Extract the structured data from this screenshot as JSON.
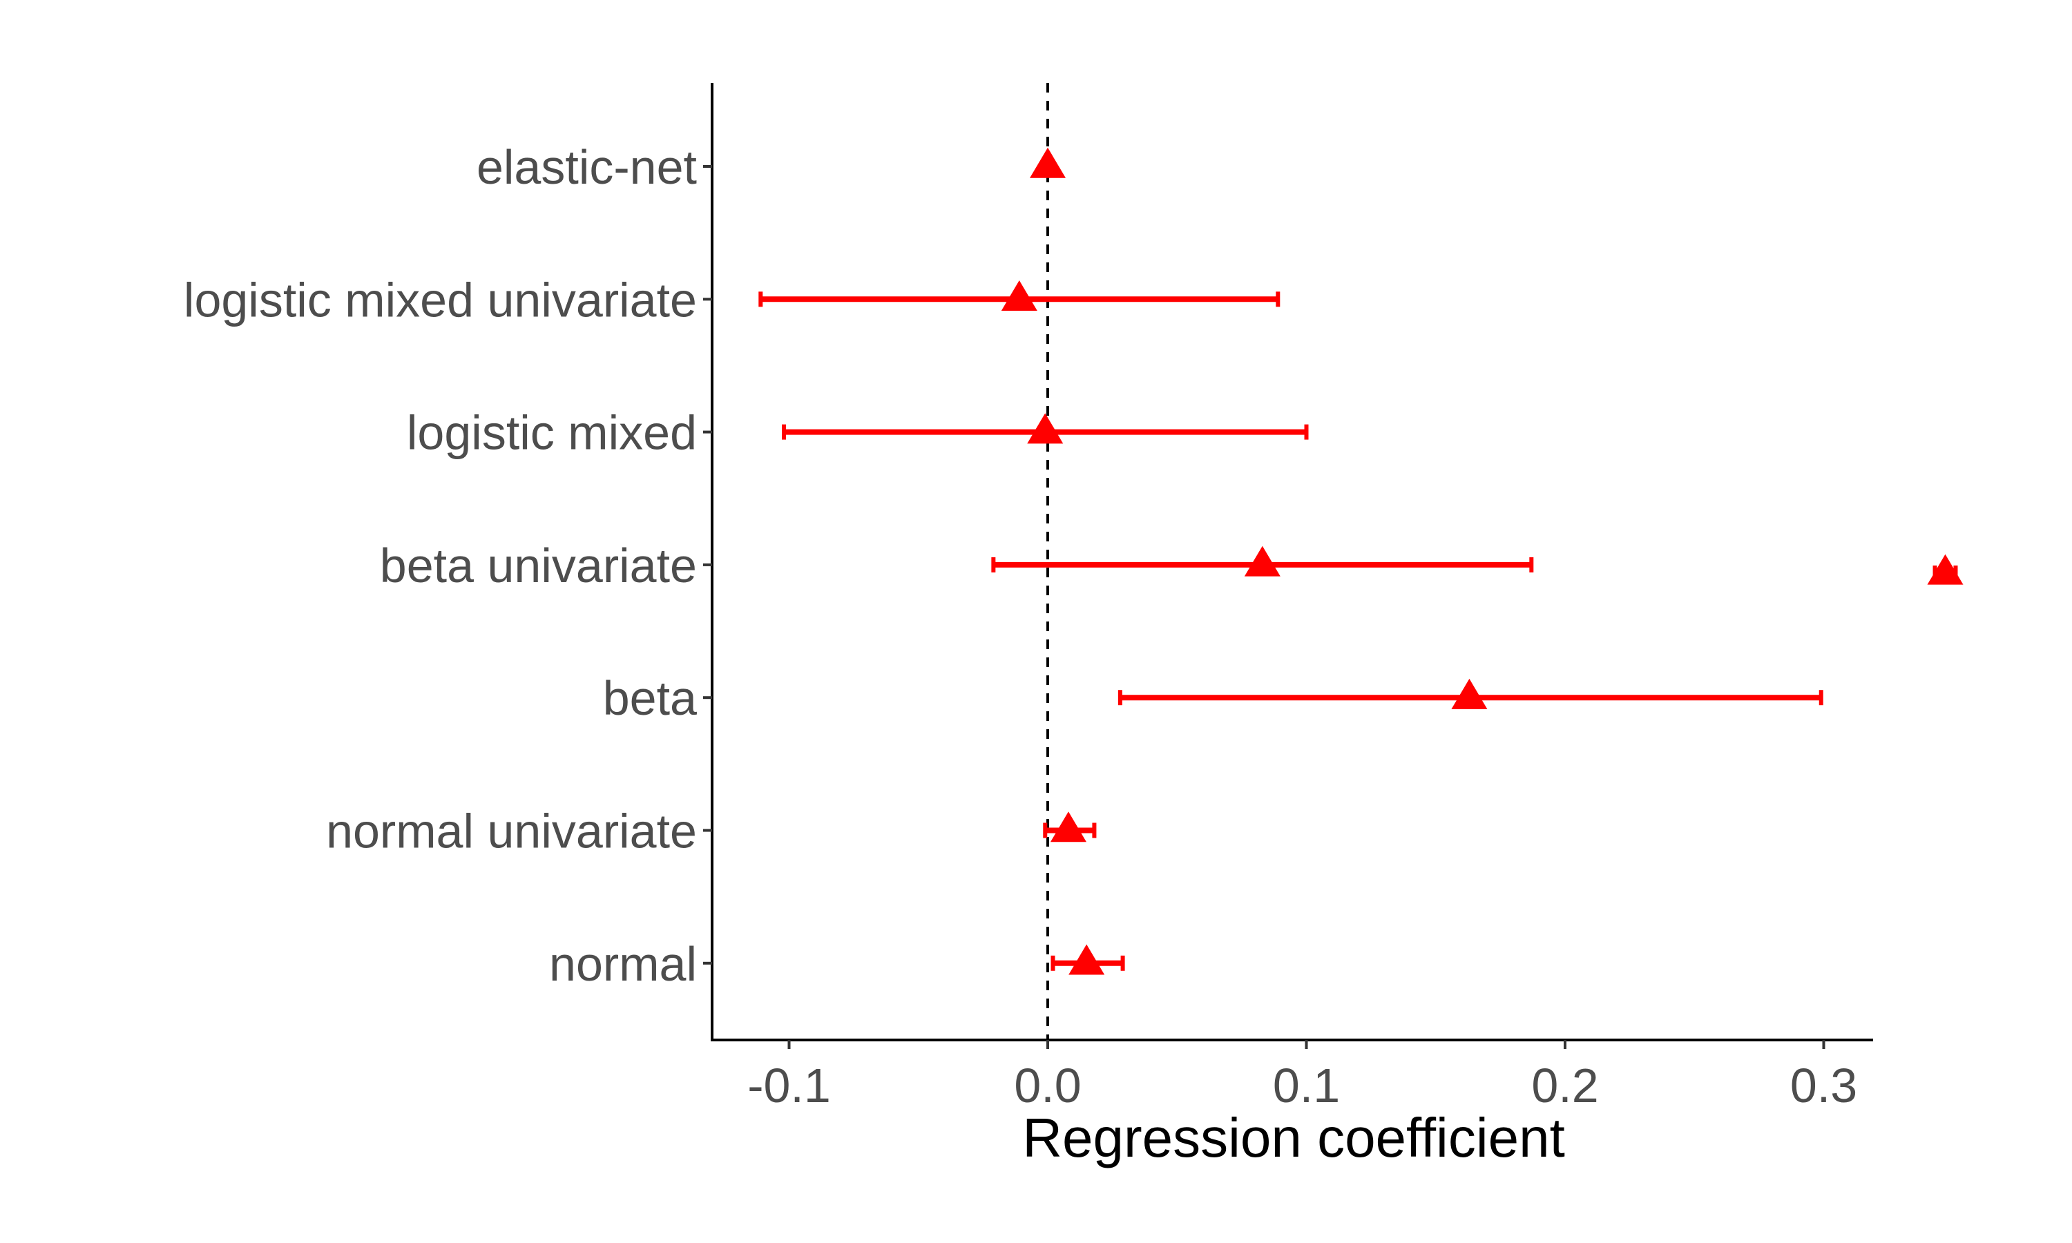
{
  "chart_data": {
    "type": "scatter",
    "subtype": "forest-plot",
    "title": "",
    "xlabel": "Regression coefficient",
    "ylabel": "",
    "xlim": [
      -0.13,
      0.32
    ],
    "x_ticks": [
      -0.1,
      0.0,
      0.1,
      0.2,
      0.3
    ],
    "x_tick_labels": [
      "-0.1",
      "0.0",
      "0.1",
      "0.2",
      "0.3"
    ],
    "reference_line": {
      "x": 0,
      "style": "dashed",
      "color": "#000000"
    },
    "grid": false,
    "marker": "triangle",
    "color": "#ff0000",
    "categories": [
      "elastic-net",
      "logistic mixed univariate",
      "logistic mixed",
      "beta univariate",
      "beta",
      "normal univariate",
      "normal"
    ],
    "points": [
      {
        "label": "elastic-net",
        "estimate": 0.0,
        "lower": null,
        "upper": null
      },
      {
        "label": "logistic mixed univariate",
        "estimate": -0.011,
        "lower": -0.111,
        "upper": 0.089
      },
      {
        "label": "logistic mixed",
        "estimate": -0.001,
        "lower": -0.102,
        "upper": 0.1
      },
      {
        "label": "beta univariate",
        "estimate": 0.083,
        "lower": -0.021,
        "upper": 0.187
      },
      {
        "label": "beta",
        "estimate": 0.163,
        "lower": 0.028,
        "upper": 0.299
      },
      {
        "label": "normal univariate",
        "estimate": 0.008,
        "lower": -0.001,
        "upper": 0.018
      },
      {
        "label": "normal",
        "estimate": 0.015,
        "lower": 0.002,
        "upper": 0.029
      }
    ],
    "outlier_points": [
      {
        "label": "beta univariate",
        "estimate": 0.347,
        "lower": 0.343,
        "upper": 0.351
      }
    ]
  }
}
